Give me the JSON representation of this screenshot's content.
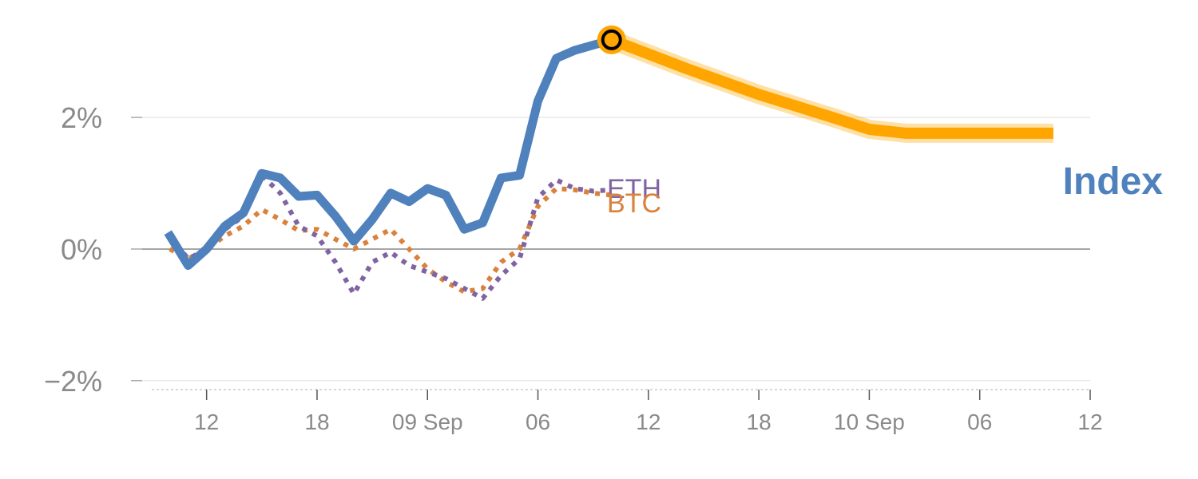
{
  "chart_data": {
    "type": "line",
    "title": "",
    "xlabel": "",
    "ylabel": "",
    "ylim": [
      -2.1,
      3.3
    ],
    "grid": true,
    "y_ticks": [
      {
        "value": 2,
        "label": "2%"
      },
      {
        "value": 0,
        "label": "0%"
      },
      {
        "value": -2,
        "label": "−2%"
      }
    ],
    "x_ticks": [
      {
        "t": 2,
        "label": "12"
      },
      {
        "t": 8,
        "label": "18"
      },
      {
        "t": 14,
        "label": "09 Sep"
      },
      {
        "t": 20,
        "label": "06"
      },
      {
        "t": 26,
        "label": "12"
      },
      {
        "t": 32,
        "label": "18"
      },
      {
        "t": 38,
        "label": "10 Sep"
      },
      {
        "t": 44,
        "label": "06"
      },
      {
        "t": 50,
        "label": "12"
      }
    ],
    "xlim": [
      -1.5,
      50
    ],
    "series": [
      {
        "name": "Index",
        "color": "#4f81bd",
        "style": "solid",
        "points": [
          [
            -0.1,
            0.25
          ],
          [
            1,
            -0.25
          ],
          [
            2,
            0.0
          ],
          [
            3,
            0.35
          ],
          [
            4,
            0.55
          ],
          [
            5,
            1.15
          ],
          [
            6,
            1.08
          ],
          [
            7,
            0.8
          ],
          [
            8,
            0.82
          ],
          [
            9,
            0.5
          ],
          [
            10,
            0.12
          ],
          [
            11,
            0.45
          ],
          [
            12,
            0.85
          ],
          [
            13,
            0.72
          ],
          [
            14,
            0.92
          ],
          [
            15,
            0.82
          ],
          [
            16,
            0.3
          ],
          [
            17,
            0.4
          ],
          [
            18,
            1.08
          ],
          [
            19,
            1.12
          ],
          [
            20,
            2.25
          ],
          [
            21,
            2.9
          ],
          [
            22,
            3.02
          ],
          [
            23,
            3.1
          ],
          [
            24,
            3.18
          ]
        ]
      },
      {
        "name": "ETH",
        "color": "#8064a2",
        "style": "dotted",
        "points": [
          [
            0,
            0.2
          ],
          [
            1,
            -0.15
          ],
          [
            2,
            0.0
          ],
          [
            3,
            0.3
          ],
          [
            4,
            0.5
          ],
          [
            5,
            1.12
          ],
          [
            6,
            0.85
          ],
          [
            7,
            0.35
          ],
          [
            8,
            0.2
          ],
          [
            9,
            -0.2
          ],
          [
            10,
            -0.68
          ],
          [
            11,
            -0.2
          ],
          [
            12,
            -0.05
          ],
          [
            13,
            -0.25
          ],
          [
            14,
            -0.35
          ],
          [
            15,
            -0.45
          ],
          [
            16,
            -0.6
          ],
          [
            17,
            -0.75
          ],
          [
            18,
            -0.4
          ],
          [
            19,
            -0.15
          ],
          [
            20,
            0.78
          ],
          [
            21,
            1.05
          ],
          [
            22,
            0.92
          ],
          [
            23,
            0.88
          ],
          [
            24,
            0.9
          ]
        ]
      },
      {
        "name": "BTC",
        "color": "#d9823b",
        "style": "dotted",
        "points": [
          [
            0,
            0.0
          ],
          [
            1,
            -0.15
          ],
          [
            2,
            0.0
          ],
          [
            3,
            0.2
          ],
          [
            4,
            0.35
          ],
          [
            5,
            0.6
          ],
          [
            6,
            0.45
          ],
          [
            7,
            0.28
          ],
          [
            8,
            0.3
          ],
          [
            9,
            0.15
          ],
          [
            10,
            0.0
          ],
          [
            11,
            0.15
          ],
          [
            12,
            0.3
          ],
          [
            13,
            0.0
          ],
          [
            14,
            -0.3
          ],
          [
            15,
            -0.5
          ],
          [
            16,
            -0.65
          ],
          [
            17,
            -0.6
          ],
          [
            18,
            -0.2
          ],
          [
            19,
            0.0
          ],
          [
            20,
            0.65
          ],
          [
            21,
            0.92
          ],
          [
            22,
            0.9
          ],
          [
            23,
            0.85
          ],
          [
            24,
            0.82
          ]
        ]
      },
      {
        "name": "Index forecast",
        "color": "#ffa500",
        "style": "band",
        "points": [
          [
            24,
            3.18
          ],
          [
            28,
            2.75
          ],
          [
            32,
            2.35
          ],
          [
            36,
            2.0
          ],
          [
            38,
            1.82
          ],
          [
            40,
            1.76
          ],
          [
            44,
            1.76
          ],
          [
            48,
            1.76
          ]
        ]
      }
    ],
    "labels": {
      "eth": "ETH",
      "btc": "BTC",
      "index": "Index"
    },
    "colors": {
      "index": "#4f81bd",
      "eth": "#8064a2",
      "btc": "#d9823b",
      "forecast": "#ffa500",
      "marker_fill": "#ffa500",
      "axis_text": "#8a8a8a",
      "grid": "#e6e6e6",
      "zero_line": "#888888"
    }
  }
}
